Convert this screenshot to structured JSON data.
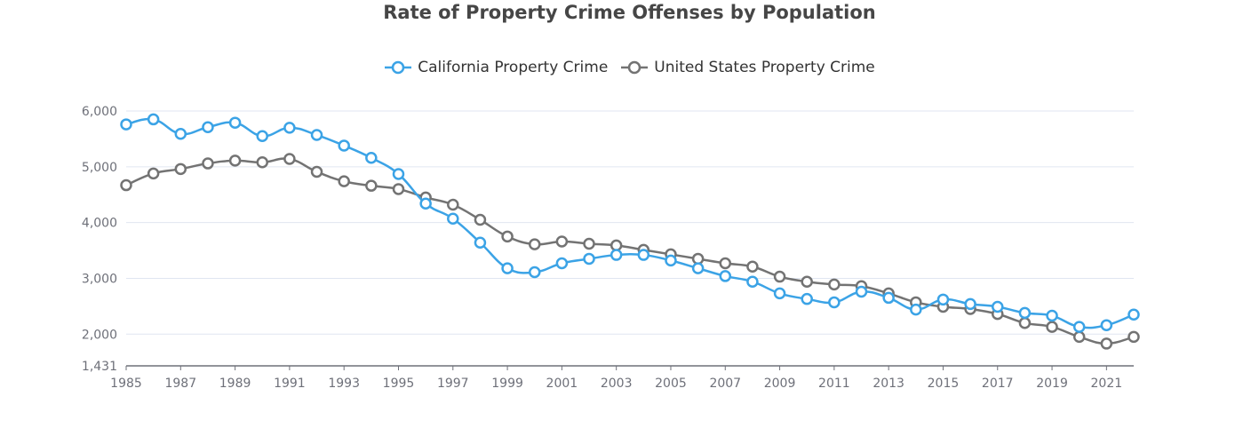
{
  "chart_data": {
    "type": "line",
    "title": "Rate of Property Crime Offenses by Population",
    "xlabel": "",
    "ylabel": "",
    "x": [
      1985,
      1986,
      1987,
      1988,
      1989,
      1990,
      1991,
      1992,
      1993,
      1994,
      1995,
      1996,
      1997,
      1998,
      1999,
      2000,
      2001,
      2002,
      2003,
      2004,
      2005,
      2006,
      2007,
      2008,
      2009,
      2010,
      2011,
      2012,
      2013,
      2014,
      2015,
      2016,
      2017,
      2018,
      2019,
      2020,
      2021,
      2022
    ],
    "x_tick_labels": [
      "1985",
      "1987",
      "1989",
      "1991",
      "1993",
      "1995",
      "1997",
      "1999",
      "2001",
      "2003",
      "2005",
      "2007",
      "2009",
      "2011",
      "2013",
      "2015",
      "2017",
      "2019",
      "2021"
    ],
    "y_tick_labels": [
      "1,431",
      "2,000",
      "3,000",
      "4,000",
      "5,000",
      "6,000"
    ],
    "y_ticks": [
      1431,
      2000,
      3000,
      4000,
      5000,
      6000
    ],
    "ylim": [
      1431,
      6000
    ],
    "grid": true,
    "legend_position": "top-center",
    "series": [
      {
        "name": "California Property Crime",
        "color": "#3ba3e6",
        "values": [
          5760,
          5850,
          5590,
          5710,
          5790,
          5550,
          5700,
          5570,
          5380,
          5160,
          4870,
          4340,
          4070,
          3640,
          3180,
          3110,
          3270,
          3350,
          3420,
          3420,
          3320,
          3180,
          3040,
          2940,
          2730,
          2630,
          2570,
          2760,
          2650,
          2440,
          2620,
          2540,
          2490,
          2380,
          2330,
          2130,
          2160,
          2350
        ]
      },
      {
        "name": "United States Property Crime",
        "color": "#737373",
        "values": [
          4670,
          4880,
          4960,
          5060,
          5110,
          5080,
          5140,
          4910,
          4740,
          4660,
          4600,
          4450,
          4320,
          4050,
          3750,
          3610,
          3660,
          3620,
          3590,
          3510,
          3430,
          3350,
          3270,
          3210,
          3030,
          2940,
          2890,
          2860,
          2730,
          2570,
          2490,
          2450,
          2360,
          2200,
          2130,
          1950,
          1830,
          1950
        ]
      }
    ]
  }
}
